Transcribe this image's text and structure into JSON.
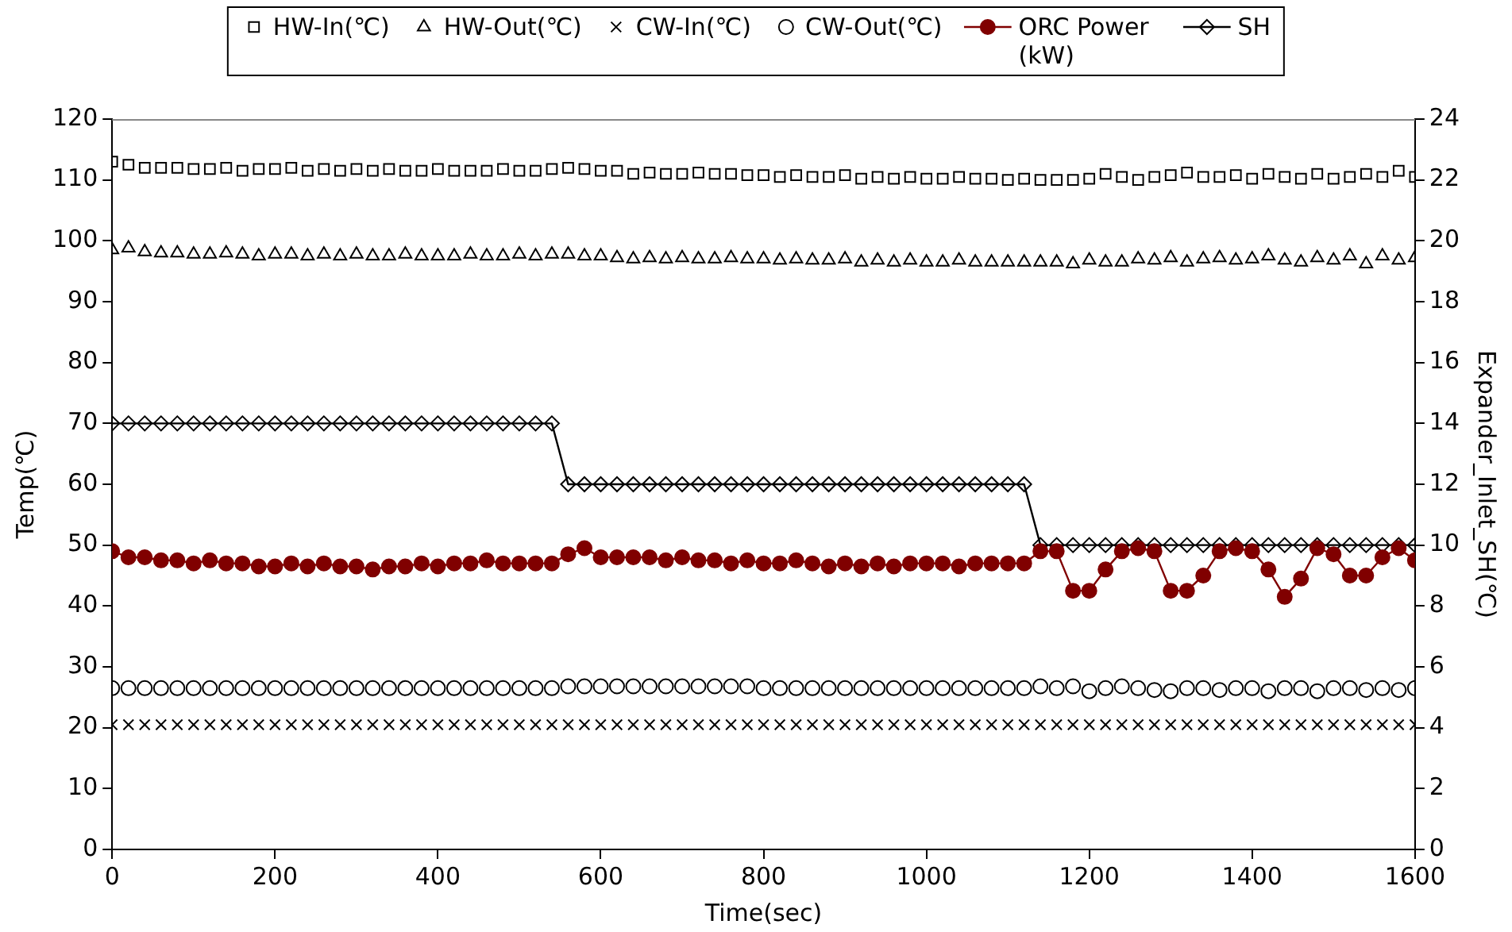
{
  "chart_data": {
    "type": "line",
    "xlabel": "Time(sec)",
    "ylabel": "Temp(℃)",
    "y2label": "Expander_Inlet_SH(℃)",
    "x": [
      0,
      20,
      40,
      60,
      80,
      100,
      120,
      140,
      160,
      180,
      200,
      220,
      240,
      260,
      280,
      300,
      320,
      340,
      360,
      380,
      400,
      420,
      440,
      460,
      480,
      500,
      520,
      540,
      560,
      580,
      600,
      620,
      640,
      660,
      680,
      700,
      720,
      740,
      760,
      780,
      800,
      820,
      840,
      860,
      880,
      900,
      920,
      940,
      960,
      980,
      1000,
      1020,
      1040,
      1060,
      1080,
      1100,
      1120,
      1140,
      1160,
      1180,
      1200,
      1220,
      1240,
      1260,
      1280,
      1300,
      1320,
      1340,
      1360,
      1380,
      1400,
      1420,
      1440,
      1460,
      1480,
      1500,
      1520,
      1540,
      1560,
      1580,
      1600
    ],
    "xlim": [
      0,
      1600
    ],
    "xticks": [
      0,
      200,
      400,
      600,
      800,
      1000,
      1200,
      1400,
      1600
    ],
    "ylim": [
      0,
      120
    ],
    "yticks": [
      0,
      10,
      20,
      30,
      40,
      50,
      60,
      70,
      80,
      90,
      100,
      110,
      120
    ],
    "y2lim": [
      0,
      24
    ],
    "y2ticks": [
      0,
      2,
      4,
      6,
      8,
      10,
      12,
      14,
      16,
      18,
      20,
      22,
      24
    ],
    "legend": "top",
    "grid": false,
    "series": [
      {
        "name": "HW-In(℃)",
        "type": "scatter",
        "marker": "square",
        "color": "#000000",
        "values": [
          113,
          112.5,
          112,
          112,
          112,
          111.8,
          111.8,
          112,
          111.5,
          111.8,
          111.8,
          112,
          111.5,
          111.8,
          111.5,
          111.8,
          111.5,
          111.8,
          111.5,
          111.5,
          111.8,
          111.5,
          111.5,
          111.5,
          111.8,
          111.5,
          111.5,
          111.8,
          112,
          111.8,
          111.5,
          111.5,
          111,
          111.2,
          111,
          111,
          111.2,
          111,
          111,
          110.8,
          110.8,
          110.5,
          110.8,
          110.5,
          110.5,
          110.8,
          110.2,
          110.5,
          110.2,
          110.5,
          110.2,
          110.2,
          110.5,
          110.2,
          110.2,
          110,
          110.2,
          110,
          110,
          110,
          110.2,
          111,
          110.5,
          110,
          110.5,
          110.8,
          111.2,
          110.5,
          110.5,
          110.8,
          110.2,
          111,
          110.5,
          110.2,
          111,
          110.2,
          110.5,
          111,
          110.5,
          111.5,
          110.5
        ]
      },
      {
        "name": "HW-Out(℃)",
        "type": "scatter",
        "marker": "triangle",
        "color": "#000000",
        "values": [
          98.5,
          98.8,
          98.2,
          98,
          98,
          97.8,
          97.8,
          98,
          97.8,
          97.5,
          97.8,
          97.8,
          97.5,
          97.8,
          97.5,
          97.8,
          97.5,
          97.5,
          97.8,
          97.5,
          97.5,
          97.5,
          97.8,
          97.5,
          97.5,
          97.8,
          97.5,
          97.8,
          97.8,
          97.5,
          97.5,
          97.2,
          97,
          97.2,
          97,
          97.2,
          97,
          97,
          97.2,
          97,
          97,
          96.8,
          97,
          96.8,
          96.8,
          97,
          96.5,
          96.8,
          96.5,
          96.8,
          96.5,
          96.5,
          96.8,
          96.5,
          96.5,
          96.5,
          96.5,
          96.5,
          96.5,
          96.2,
          96.8,
          96.5,
          96.5,
          97,
          96.8,
          97.2,
          96.5,
          97,
          97.2,
          96.8,
          97,
          97.5,
          96.8,
          96.5,
          97.2,
          96.8,
          97.5,
          96.2,
          97.5,
          96.8,
          97.2
        ]
      },
      {
        "name": "CW-In(℃)",
        "type": "scatter",
        "marker": "cross",
        "color": "#000000",
        "values": [
          20.5,
          20.5,
          20.5,
          20.5,
          20.5,
          20.5,
          20.5,
          20.5,
          20.5,
          20.5,
          20.5,
          20.5,
          20.5,
          20.5,
          20.5,
          20.5,
          20.5,
          20.5,
          20.5,
          20.5,
          20.5,
          20.5,
          20.5,
          20.5,
          20.5,
          20.5,
          20.5,
          20.5,
          20.5,
          20.5,
          20.5,
          20.5,
          20.5,
          20.5,
          20.5,
          20.5,
          20.5,
          20.5,
          20.5,
          20.5,
          20.5,
          20.5,
          20.5,
          20.5,
          20.5,
          20.5,
          20.5,
          20.5,
          20.5,
          20.5,
          20.5,
          20.5,
          20.5,
          20.5,
          20.5,
          20.5,
          20.5,
          20.5,
          20.5,
          20.5,
          20.5,
          20.5,
          20.5,
          20.5,
          20.5,
          20.5,
          20.5,
          20.5,
          20.5,
          20.5,
          20.5,
          20.5,
          20.5,
          20.5,
          20.5,
          20.5,
          20.5,
          20.5,
          20.5,
          20.5,
          20.5
        ]
      },
      {
        "name": "CW-Out(℃)",
        "type": "scatter",
        "marker": "circle",
        "color": "#000000",
        "values": [
          26.5,
          26.5,
          26.5,
          26.5,
          26.5,
          26.5,
          26.5,
          26.5,
          26.5,
          26.5,
          26.5,
          26.5,
          26.5,
          26.5,
          26.5,
          26.5,
          26.5,
          26.5,
          26.5,
          26.5,
          26.5,
          26.5,
          26.5,
          26.5,
          26.5,
          26.5,
          26.5,
          26.5,
          26.8,
          26.8,
          26.8,
          26.8,
          26.8,
          26.8,
          26.8,
          26.8,
          26.8,
          26.8,
          26.8,
          26.8,
          26.5,
          26.5,
          26.5,
          26.5,
          26.5,
          26.5,
          26.5,
          26.5,
          26.5,
          26.5,
          26.5,
          26.5,
          26.5,
          26.5,
          26.5,
          26.5,
          26.5,
          26.8,
          26.5,
          26.8,
          26,
          26.5,
          26.8,
          26.5,
          26.2,
          26,
          26.5,
          26.5,
          26.2,
          26.5,
          26.5,
          26,
          26.5,
          26.5,
          26,
          26.5,
          26.5,
          26.2,
          26.5,
          26.2,
          26.5
        ]
      },
      {
        "name": "ORC Power (kW)",
        "axis": "y2",
        "marker": "circle",
        "color": "#800000",
        "values": [
          9.8,
          9.6,
          9.6,
          9.5,
          9.5,
          9.4,
          9.5,
          9.4,
          9.4,
          9.3,
          9.3,
          9.4,
          9.3,
          9.4,
          9.3,
          9.3,
          9.2,
          9.3,
          9.3,
          9.4,
          9.3,
          9.4,
          9.4,
          9.5,
          9.4,
          9.4,
          9.4,
          9.4,
          9.7,
          9.9,
          9.6,
          9.6,
          9.6,
          9.6,
          9.5,
          9.6,
          9.5,
          9.5,
          9.4,
          9.5,
          9.4,
          9.4,
          9.5,
          9.4,
          9.3,
          9.4,
          9.3,
          9.4,
          9.3,
          9.4,
          9.4,
          9.4,
          9.3,
          9.4,
          9.4,
          9.4,
          9.4,
          9.8,
          9.8,
          8.5,
          8.5,
          9.2,
          9.8,
          9.9,
          9.8,
          8.5,
          8.5,
          9.0,
          9.8,
          9.9,
          9.8,
          9.2,
          8.3,
          8.9,
          9.9,
          9.7,
          9.0,
          9.0,
          9.6,
          9.9,
          9.5
        ]
      },
      {
        "name": "SH",
        "axis": "y2",
        "marker": "diamond",
        "color": "#000000",
        "values": [
          14,
          14,
          14,
          14,
          14,
          14,
          14,
          14,
          14,
          14,
          14,
          14,
          14,
          14,
          14,
          14,
          14,
          14,
          14,
          14,
          14,
          14,
          14,
          14,
          14,
          14,
          14,
          14,
          12,
          12,
          12,
          12,
          12,
          12,
          12,
          12,
          12,
          12,
          12,
          12,
          12,
          12,
          12,
          12,
          12,
          12,
          12,
          12,
          12,
          12,
          12,
          12,
          12,
          12,
          12,
          12,
          12,
          10,
          10,
          10,
          10,
          10,
          10,
          10,
          10,
          10,
          10,
          10,
          10,
          10,
          10,
          10,
          10,
          10,
          10,
          10,
          10,
          10,
          10,
          10,
          10
        ]
      }
    ]
  }
}
